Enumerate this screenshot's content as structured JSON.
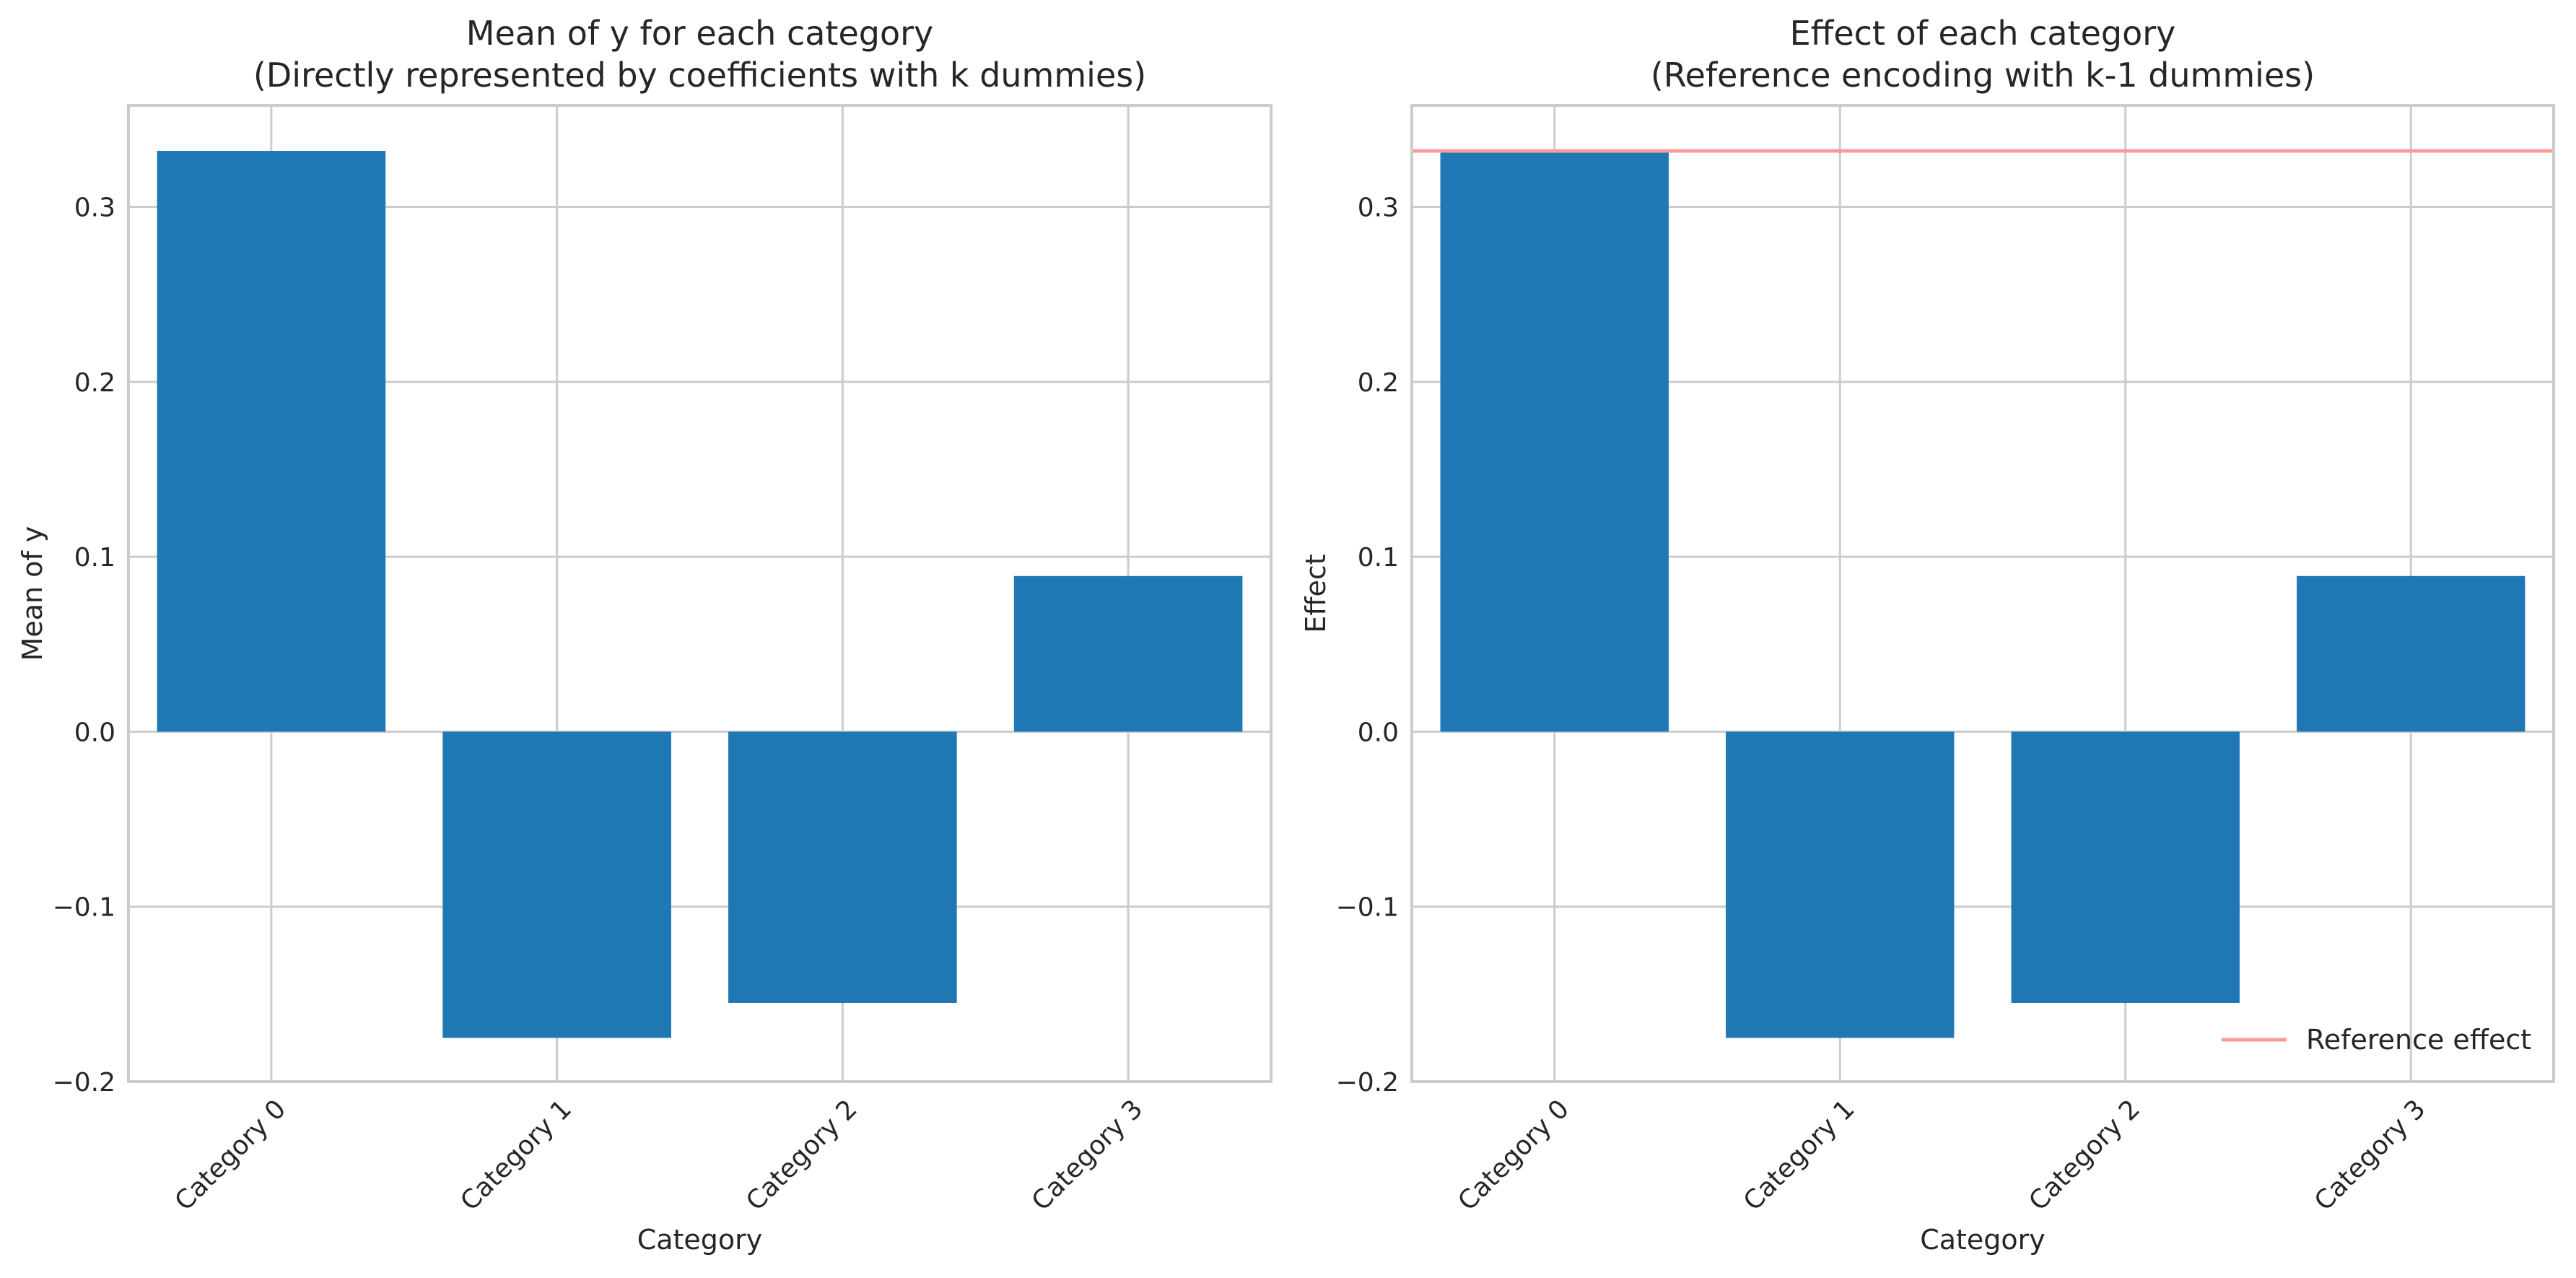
{
  "chart_data": [
    {
      "type": "bar",
      "title_line1": "Mean of y for each category",
      "title_line2": "(Directly represented by coefficients with k dummies)",
      "xlabel": "Category",
      "ylabel": "Mean of y",
      "categories": [
        "Category 0",
        "Category 1",
        "Category 2",
        "Category 3"
      ],
      "values": [
        0.332,
        -0.175,
        -0.155,
        0.089
      ],
      "ylim": [
        -0.2,
        0.358
      ],
      "yticks": [
        -0.2,
        -0.1,
        0.0,
        0.1,
        0.2,
        0.3
      ],
      "ytick_labels": [
        "−0.2",
        "−0.1",
        "0.0",
        "0.1",
        "0.2",
        "0.3"
      ],
      "bar_color": "#1f77b4",
      "grid": true
    },
    {
      "type": "bar",
      "title_line1": "Effect of each category",
      "title_line2": "(Reference encoding with k-1 dummies)",
      "xlabel": "Category",
      "ylabel": "Effect",
      "categories": [
        "Category 0",
        "Category 1",
        "Category 2",
        "Category 3"
      ],
      "values": [
        0.332,
        -0.175,
        -0.155,
        0.089
      ],
      "ylim": [
        -0.2,
        0.358
      ],
      "yticks": [
        -0.2,
        -0.1,
        0.0,
        0.1,
        0.2,
        0.3
      ],
      "ytick_labels": [
        "−0.2",
        "−0.1",
        "0.0",
        "0.1",
        "0.2",
        "0.3"
      ],
      "bar_color": "#1f77b4",
      "grid": true,
      "reference_line": {
        "value": 0.332,
        "label": "Reference effect",
        "color": "#ff9999"
      },
      "legend_position": "lower-right"
    }
  ]
}
